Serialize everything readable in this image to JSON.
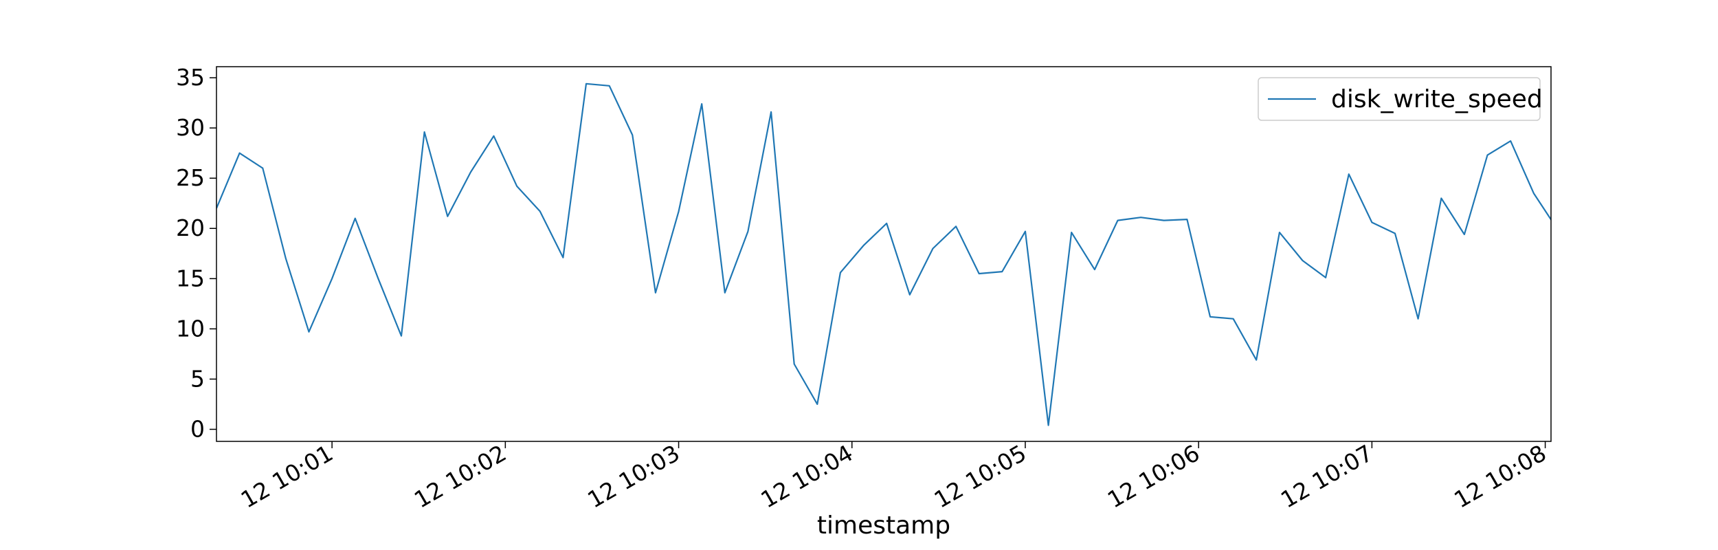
{
  "chart_data": {
    "type": "line",
    "title": "",
    "xlabel": "timestamp",
    "ylabel": "",
    "ylim": [
      -1.2,
      36.1
    ],
    "xlim": [
      "10:00:20",
      "10:08:02"
    ],
    "yticks": [
      0,
      5,
      10,
      15,
      20,
      25,
      30,
      35
    ],
    "xticks": [
      {
        "value": "10:01:00",
        "label": "12 10:01"
      },
      {
        "value": "10:02:00",
        "label": "12 10:02"
      },
      {
        "value": "10:03:00",
        "label": "12 10:03"
      },
      {
        "value": "10:04:00",
        "label": "12 10:04"
      },
      {
        "value": "10:05:00",
        "label": "12 10:05"
      },
      {
        "value": "10:06:00",
        "label": "12 10:06"
      },
      {
        "value": "10:07:00",
        "label": "12 10:07"
      },
      {
        "value": "10:08:00",
        "label": "12 10:08"
      }
    ],
    "grid": false,
    "legend_position": "top-right",
    "series": [
      {
        "name": "disk_write_speed",
        "color": "#1f77b4",
        "x": [
          "10:00:20",
          "10:00:28",
          "10:00:36",
          "10:00:44",
          "10:00:52",
          "10:01:00",
          "10:01:08",
          "10:01:16",
          "10:01:24",
          "10:01:32",
          "10:01:40",
          "10:01:48",
          "10:01:56",
          "10:02:04",
          "10:02:12",
          "10:02:20",
          "10:02:28",
          "10:02:36",
          "10:02:44",
          "10:02:52",
          "10:03:00",
          "10:03:08",
          "10:03:16",
          "10:03:24",
          "10:03:32",
          "10:03:40",
          "10:03:48",
          "10:03:56",
          "10:04:04",
          "10:04:12",
          "10:04:20",
          "10:04:28",
          "10:04:36",
          "10:04:44",
          "10:04:52",
          "10:05:00",
          "10:05:08",
          "10:05:16",
          "10:05:24",
          "10:05:32",
          "10:05:40",
          "10:05:48",
          "10:05:56",
          "10:06:04",
          "10:06:12",
          "10:06:20",
          "10:06:28",
          "10:06:36",
          "10:06:44",
          "10:06:52",
          "10:07:00",
          "10:07:08",
          "10:07:16",
          "10:07:24",
          "10:07:32",
          "10:07:40",
          "10:07:48",
          "10:07:56",
          "10:08:04"
        ],
        "values": [
          22.0,
          27.5,
          26.0,
          17.0,
          9.7,
          15.0,
          21.0,
          15.0,
          9.3,
          29.6,
          21.2,
          25.6,
          29.2,
          24.2,
          21.7,
          17.1,
          34.4,
          34.2,
          29.3,
          13.6,
          21.7,
          32.4,
          13.6,
          19.7,
          31.6,
          6.5,
          2.5,
          15.6,
          18.3,
          20.5,
          13.4,
          18.0,
          20.2,
          15.5,
          15.7,
          19.7,
          0.4,
          19.6,
          15.9,
          20.8,
          21.1,
          20.8,
          20.9,
          11.2,
          11.0,
          6.9,
          19.6,
          16.8,
          15.1,
          25.4,
          20.6,
          19.5,
          11.0,
          23.0,
          19.4,
          27.3,
          28.7,
          23.5,
          20.0
        ]
      }
    ]
  }
}
